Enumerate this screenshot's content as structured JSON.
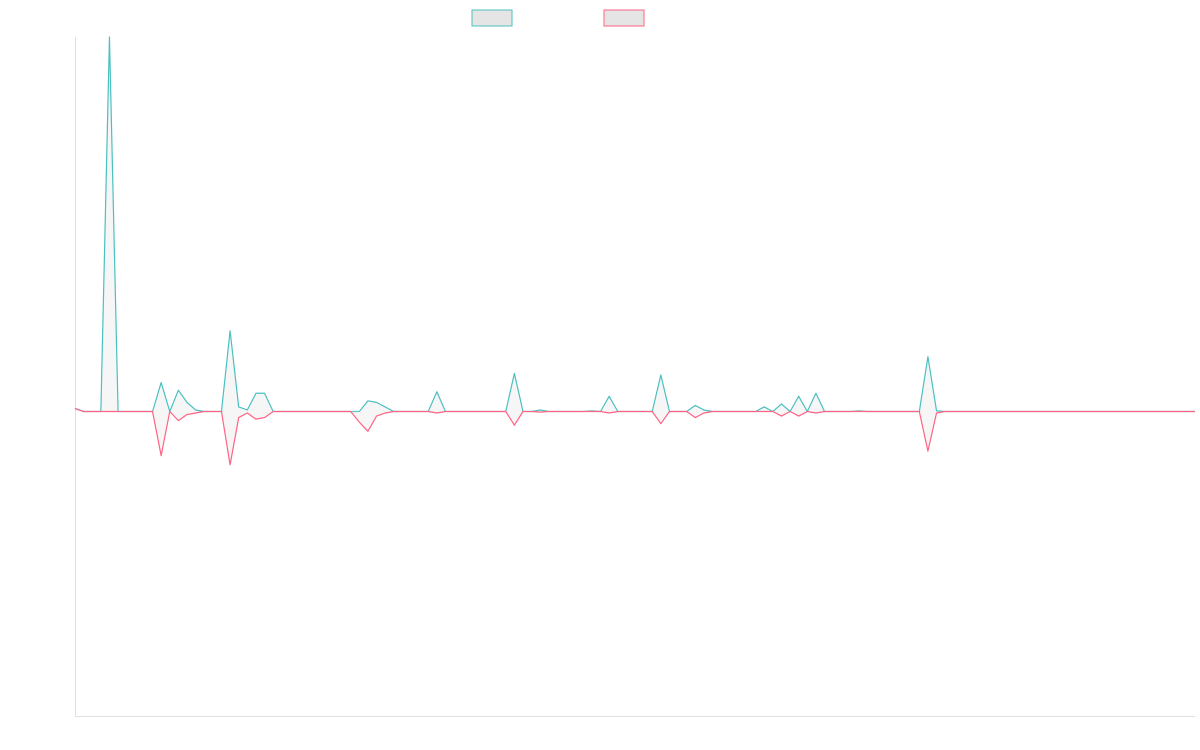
{
  "chart_data": {
    "type": "line",
    "title": "",
    "xlabel": "",
    "ylabel": "",
    "grid": false,
    "legend_placement": "top-center",
    "x_count": 131,
    "ylim": [
      -1,
      1.23
    ],
    "series": [
      {
        "color": "#4bc0c0",
        "fill": "#e5e5e5",
        "points": [
          [
            0,
            0.01
          ],
          [
            1,
            0
          ],
          [
            2,
            0
          ],
          [
            3,
            0
          ],
          [
            4,
            1.23
          ],
          [
            5,
            0
          ],
          [
            6,
            0
          ],
          [
            7,
            0
          ],
          [
            8,
            0
          ],
          [
            9,
            0
          ],
          [
            10,
            0.095
          ],
          [
            11,
            0
          ],
          [
            12,
            0.07
          ],
          [
            13,
            0.03
          ],
          [
            14,
            0.005
          ],
          [
            15,
            0
          ],
          [
            16,
            0
          ],
          [
            17,
            0
          ],
          [
            18,
            0.265
          ],
          [
            19,
            0.015
          ],
          [
            20,
            0.005
          ],
          [
            21,
            0.06
          ],
          [
            22,
            0.06
          ],
          [
            23,
            0
          ],
          [
            24,
            0
          ],
          [
            25,
            0
          ],
          [
            26,
            0
          ],
          [
            27,
            0
          ],
          [
            28,
            0
          ],
          [
            29,
            0
          ],
          [
            30,
            0
          ],
          [
            31,
            0
          ],
          [
            32,
            0
          ],
          [
            33,
            0
          ],
          [
            34,
            0.035
          ],
          [
            35,
            0.03
          ],
          [
            36,
            0.015
          ],
          [
            37,
            0
          ],
          [
            38,
            0
          ],
          [
            39,
            0
          ],
          [
            40,
            0
          ],
          [
            41,
            0
          ],
          [
            42,
            0.065
          ],
          [
            43,
            0
          ],
          [
            44,
            0
          ],
          [
            45,
            0
          ],
          [
            46,
            0
          ],
          [
            47,
            0
          ],
          [
            48,
            0
          ],
          [
            49,
            0
          ],
          [
            50,
            0
          ],
          [
            51,
            0.125
          ],
          [
            52,
            0
          ],
          [
            53,
            0
          ],
          [
            54,
            0.005
          ],
          [
            55,
            0
          ],
          [
            56,
            0
          ],
          [
            57,
            0
          ],
          [
            58,
            0
          ],
          [
            59,
            0
          ],
          [
            60,
            0.002
          ],
          [
            61,
            0
          ],
          [
            62,
            0.05
          ],
          [
            63,
            0
          ],
          [
            64,
            0
          ],
          [
            65,
            0
          ],
          [
            66,
            0
          ],
          [
            67,
            0
          ],
          [
            68,
            0.12
          ],
          [
            69,
            0
          ],
          [
            70,
            0
          ],
          [
            71,
            0
          ],
          [
            72,
            0.02
          ],
          [
            73,
            0.005
          ],
          [
            74,
            0
          ],
          [
            75,
            0
          ],
          [
            76,
            0
          ],
          [
            77,
            0
          ],
          [
            78,
            0
          ],
          [
            79,
            0
          ],
          [
            80,
            0.015
          ],
          [
            81,
            0
          ],
          [
            82,
            0.025
          ],
          [
            83,
            0
          ],
          [
            84,
            0.05
          ],
          [
            85,
            0
          ],
          [
            86,
            0.06
          ],
          [
            87,
            0
          ],
          [
            88,
            0
          ],
          [
            89,
            0
          ],
          [
            90,
            0
          ],
          [
            91,
            0.002
          ],
          [
            92,
            0
          ],
          [
            93,
            0
          ],
          [
            94,
            0
          ],
          [
            95,
            0
          ],
          [
            96,
            0
          ],
          [
            97,
            0
          ],
          [
            98,
            0
          ],
          [
            99,
            0.18
          ],
          [
            100,
            0.002
          ],
          [
            101,
            0
          ],
          [
            102,
            0
          ],
          [
            103,
            0
          ],
          [
            104,
            0
          ],
          [
            105,
            0
          ],
          [
            106,
            0
          ],
          [
            107,
            0
          ],
          [
            108,
            0
          ],
          [
            109,
            0
          ],
          [
            110,
            0
          ],
          [
            111,
            0
          ],
          [
            112,
            0
          ],
          [
            113,
            0
          ],
          [
            114,
            0
          ],
          [
            115,
            0
          ],
          [
            116,
            0
          ],
          [
            117,
            0
          ],
          [
            118,
            0
          ],
          [
            119,
            0
          ],
          [
            120,
            0
          ],
          [
            121,
            0
          ],
          [
            122,
            0
          ],
          [
            123,
            0
          ],
          [
            124,
            0
          ],
          [
            125,
            0
          ],
          [
            126,
            0
          ],
          [
            127,
            0
          ],
          [
            128,
            0
          ],
          [
            129,
            0
          ],
          [
            130,
            0
          ]
        ]
      },
      {
        "color": "#ff6384",
        "fill": "#e5e5e5",
        "points": [
          [
            0,
            0.01
          ],
          [
            1,
            0
          ],
          [
            2,
            0
          ],
          [
            3,
            0
          ],
          [
            4,
            0
          ],
          [
            5,
            0
          ],
          [
            6,
            0
          ],
          [
            7,
            0
          ],
          [
            8,
            0
          ],
          [
            9,
            0
          ],
          [
            10,
            -0.145
          ],
          [
            11,
            0
          ],
          [
            12,
            -0.03
          ],
          [
            13,
            -0.01
          ],
          [
            14,
            -0.005
          ],
          [
            15,
            0
          ],
          [
            16,
            0
          ],
          [
            17,
            0
          ],
          [
            18,
            -0.175
          ],
          [
            19,
            -0.02
          ],
          [
            20,
            -0.005
          ],
          [
            21,
            -0.025
          ],
          [
            22,
            -0.02
          ],
          [
            23,
            0
          ],
          [
            24,
            0
          ],
          [
            25,
            0
          ],
          [
            26,
            0
          ],
          [
            27,
            0
          ],
          [
            28,
            0
          ],
          [
            29,
            0
          ],
          [
            30,
            0
          ],
          [
            31,
            0
          ],
          [
            32,
            0
          ],
          [
            33,
            -0.035
          ],
          [
            34,
            -0.065
          ],
          [
            35,
            -0.015
          ],
          [
            36,
            -0.005
          ],
          [
            37,
            0
          ],
          [
            38,
            0
          ],
          [
            39,
            0
          ],
          [
            40,
            0
          ],
          [
            41,
            0
          ],
          [
            42,
            -0.005
          ],
          [
            43,
            0
          ],
          [
            44,
            0
          ],
          [
            45,
            0
          ],
          [
            46,
            0
          ],
          [
            47,
            0
          ],
          [
            48,
            0
          ],
          [
            49,
            0
          ],
          [
            50,
            0
          ],
          [
            51,
            -0.045
          ],
          [
            52,
            0
          ],
          [
            53,
            0
          ],
          [
            54,
            -0.002
          ],
          [
            55,
            0
          ],
          [
            56,
            0
          ],
          [
            57,
            0
          ],
          [
            58,
            0
          ],
          [
            59,
            0
          ],
          [
            60,
            0
          ],
          [
            61,
            0
          ],
          [
            62,
            -0.005
          ],
          [
            63,
            0
          ],
          [
            64,
            0
          ],
          [
            65,
            0
          ],
          [
            66,
            0
          ],
          [
            67,
            0
          ],
          [
            68,
            -0.04
          ],
          [
            69,
            0
          ],
          [
            70,
            0
          ],
          [
            71,
            0
          ],
          [
            72,
            -0.02
          ],
          [
            73,
            -0.005
          ],
          [
            74,
            0
          ],
          [
            75,
            0
          ],
          [
            76,
            0
          ],
          [
            77,
            0
          ],
          [
            78,
            0
          ],
          [
            79,
            0
          ],
          [
            80,
            0
          ],
          [
            81,
            0
          ],
          [
            82,
            -0.015
          ],
          [
            83,
            0
          ],
          [
            84,
            -0.015
          ],
          [
            85,
            0
          ],
          [
            86,
            -0.005
          ],
          [
            87,
            0
          ],
          [
            88,
            0
          ],
          [
            89,
            0
          ],
          [
            90,
            0
          ],
          [
            91,
            0
          ],
          [
            92,
            0
          ],
          [
            93,
            0
          ],
          [
            94,
            0
          ],
          [
            95,
            0
          ],
          [
            96,
            0
          ],
          [
            97,
            0
          ],
          [
            98,
            0
          ],
          [
            99,
            -0.13
          ],
          [
            100,
            -0.005
          ],
          [
            101,
            0
          ],
          [
            102,
            0
          ],
          [
            103,
            0
          ],
          [
            104,
            0
          ],
          [
            105,
            0
          ],
          [
            106,
            0
          ],
          [
            107,
            0
          ],
          [
            108,
            0
          ],
          [
            109,
            0
          ],
          [
            110,
            0
          ],
          [
            111,
            0
          ],
          [
            112,
            0
          ],
          [
            113,
            0
          ],
          [
            114,
            0
          ],
          [
            115,
            0
          ],
          [
            116,
            0
          ],
          [
            117,
            0
          ],
          [
            118,
            0
          ],
          [
            119,
            0
          ],
          [
            120,
            0
          ],
          [
            121,
            0
          ],
          [
            122,
            0
          ],
          [
            123,
            0
          ],
          [
            124,
            0
          ],
          [
            125,
            0
          ],
          [
            126,
            0
          ],
          [
            127,
            0
          ],
          [
            128,
            0
          ],
          [
            129,
            0
          ],
          [
            130,
            0
          ]
        ]
      }
    ]
  }
}
